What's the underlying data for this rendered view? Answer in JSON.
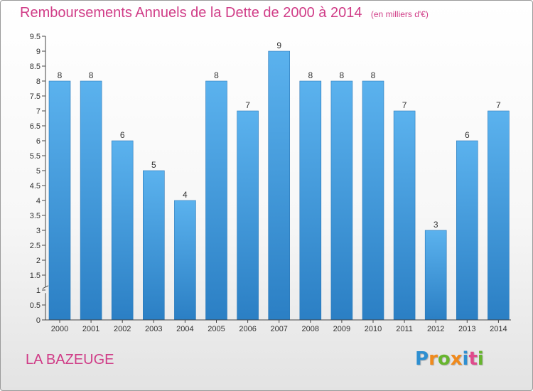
{
  "chart_data": {
    "type": "bar",
    "title": "Remboursements Annuels de la Dette de 2000 à 2014",
    "unit": "(en milliers d'€)",
    "categories": [
      "2000",
      "2001",
      "2002",
      "2003",
      "2004",
      "2005",
      "2006",
      "2007",
      "2008",
      "2009",
      "2010",
      "2011",
      "2012",
      "2013",
      "2014"
    ],
    "values": [
      8,
      8,
      6,
      5,
      4,
      8,
      7,
      9,
      8,
      8,
      8,
      7,
      3,
      6,
      7
    ],
    "data_labels": [
      "8",
      "8",
      "6",
      "5",
      "4",
      "8",
      "7",
      "9",
      "8",
      "8",
      "8",
      "7",
      "3",
      "6",
      "7"
    ],
    "ylim": [
      0,
      9.5
    ],
    "y_ticks": [
      "0",
      "0.5",
      "1",
      "1.5",
      "2",
      "2.5",
      "3",
      "3.5",
      "4",
      "4.5",
      "5",
      "5.5",
      "6",
      "6.5",
      "7",
      "7.5",
      "8",
      "8.5",
      "9",
      "9.5"
    ],
    "y_tick_values": [
      0,
      0.5,
      1,
      1.5,
      2,
      2.5,
      3,
      3.5,
      4,
      4.5,
      5,
      5.5,
      6,
      6.5,
      7,
      7.5,
      8,
      8.5,
      9,
      9.5
    ],
    "axis_break": true,
    "grid": false,
    "bar_color": "#3c96dc"
  },
  "commune": "LA BAZEUGE",
  "brand": {
    "letters": [
      "P",
      "r",
      "o",
      "x",
      "i",
      "t",
      "i"
    ],
    "colors": [
      "#2e8fd1",
      "#f08a1c",
      "#67b52e",
      "#f08a1c",
      "#2e8fd1",
      "#e04b8c",
      "#67b52e"
    ]
  },
  "colors": {
    "title": "#d03c87",
    "axis": "#444444",
    "label_text": "#333333"
  }
}
